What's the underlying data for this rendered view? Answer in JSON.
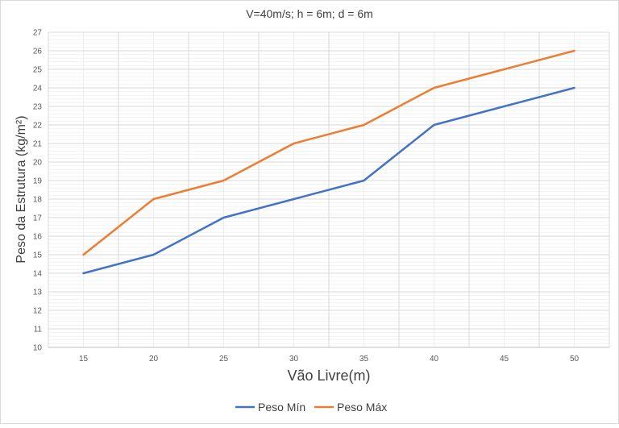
{
  "chart_data": {
    "type": "line",
    "title": "V=40m/s; h = 6m; d = 6m",
    "xlabel": "Vão Livre(m)",
    "ylabel": "Peso da Estrutura (kg/m²)",
    "x": [
      15,
      20,
      25,
      30,
      35,
      40,
      45,
      50
    ],
    "x_tick_labels": [
      "15",
      "20",
      "25",
      "30",
      "35",
      "40",
      "45",
      "50"
    ],
    "y_tick_labels": [
      "10",
      "11",
      "12",
      "13",
      "14",
      "15",
      "16",
      "17",
      "18",
      "19",
      "20",
      "21",
      "22",
      "23",
      "24",
      "25",
      "26",
      "27"
    ],
    "ylim": [
      10,
      27
    ],
    "grid": true,
    "legend_position": "bottom",
    "series": [
      {
        "name": "Peso Mín",
        "color": "#4472C4",
        "x": [
          15,
          20,
          25,
          30,
          35,
          40,
          50
        ],
        "values": [
          14,
          15,
          17,
          18,
          19,
          22,
          24
        ]
      },
      {
        "name": "Peso Máx",
        "color": "#ED7D31",
        "x": [
          15,
          20,
          25,
          30,
          35,
          40,
          50
        ],
        "values": [
          15,
          18,
          19,
          21,
          22,
          24,
          26
        ]
      }
    ]
  }
}
